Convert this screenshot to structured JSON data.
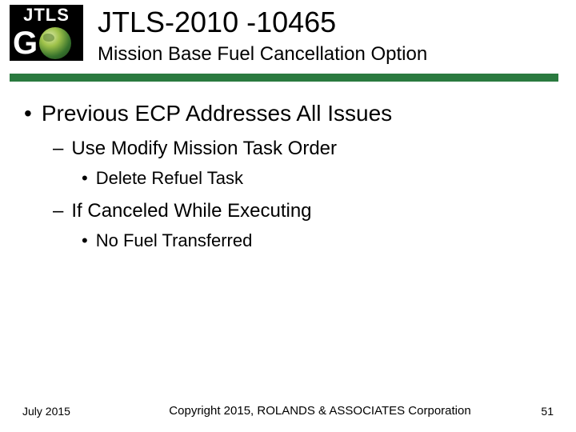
{
  "logo": {
    "top_text": "JTLS",
    "letter": "G"
  },
  "header": {
    "title": "JTLS-2010 -10465",
    "subtitle": "Mission Base Fuel Cancellation Option"
  },
  "bullets": {
    "l1": "Previous ECP Addresses All Issues",
    "l2a": "Use Modify Mission Task Order",
    "l3a": "Delete Refuel Task",
    "l2b": "If Canceled While Executing",
    "l3b": "No Fuel Transferred"
  },
  "footer": {
    "date": "July 2015",
    "copyright": "Copyright 2015, ROLANDS & ASSOCIATES Corporation",
    "page": "51"
  },
  "colors": {
    "rule": "#2a7a3f",
    "text": "#000000",
    "background": "#ffffff"
  }
}
